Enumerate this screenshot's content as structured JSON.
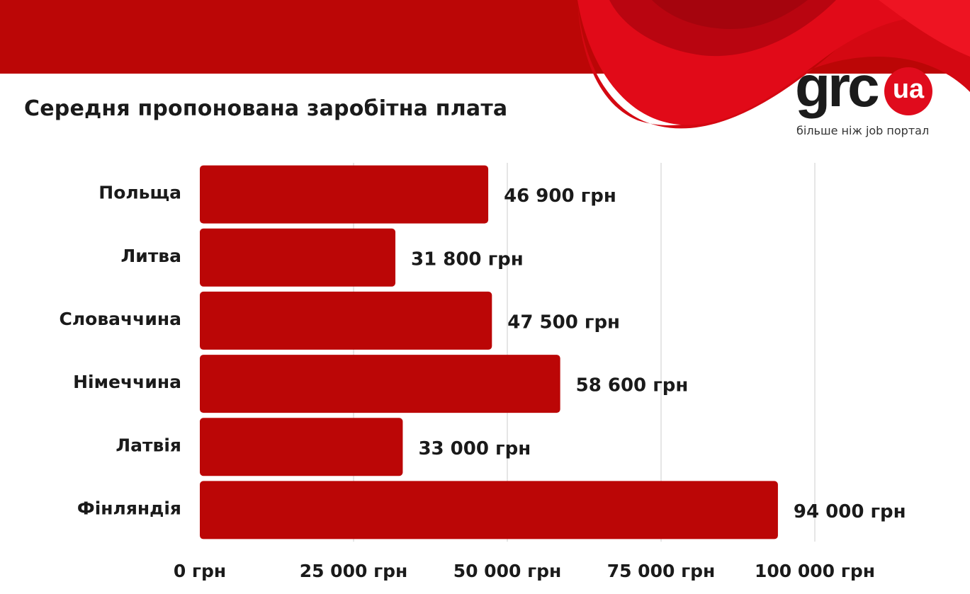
{
  "brand": {
    "logo_word": "grc",
    "logo_badge": "ua",
    "tagline": "більше ніж job портал",
    "accent_color": "#e00b1c",
    "band_color": "#bb0606"
  },
  "chart_data": {
    "type": "bar",
    "orientation": "horizontal",
    "title": "Середня пропонована заробітна плата",
    "categories": [
      "Польща",
      "Литва",
      "Словаччина",
      "Німеччина",
      "Латвія",
      "Фінляндія"
    ],
    "values": [
      46900,
      31800,
      47500,
      58600,
      33000,
      94000
    ],
    "value_labels": [
      "46 900 грн",
      "31 800 грн",
      "47 500 грн",
      "58 600 грн",
      "33 000 грн",
      "94 000 грн"
    ],
    "xlim": [
      0,
      100000
    ],
    "ticks": [
      0,
      25000,
      50000,
      75000,
      100000
    ],
    "tick_labels": [
      "0 грн",
      "25 000 грн",
      "50 000 грн",
      "75 000 грн",
      "100 000 грн"
    ],
    "grid": "vertical",
    "bar_color": "#bb0606",
    "xlabel": "",
    "ylabel": ""
  }
}
